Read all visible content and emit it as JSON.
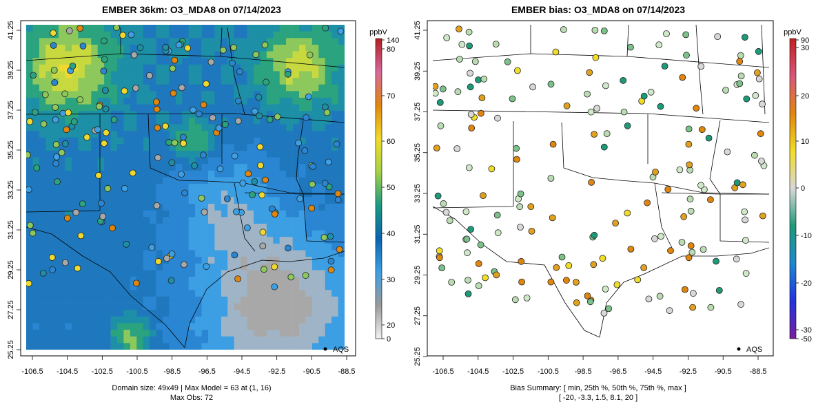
{
  "left_panel": {
    "title": "EMBER 36km: O3_MDA8 on 07/14/2023",
    "x_ticks": [
      "-106.5",
      "-104.5",
      "-102.5",
      "-100.5",
      "-98.5",
      "-96.5",
      "-94.5",
      "-92.5",
      "-90.5",
      "-88.5"
    ],
    "y_ticks": [
      "41.25",
      "39.25",
      "37.25",
      "35.25",
      "33.25",
      "31.25",
      "29.25",
      "27.25",
      "25.25"
    ],
    "legend_label": "AQS",
    "footer_line1": "Domain size: 49x49 | Max Model = 63 at (1, 16)",
    "footer_line2": "Max Obs: 72",
    "colorbar": {
      "unit": "ppbV",
      "tick_labels": [
        "140",
        "80",
        "70",
        "60",
        "50",
        "40",
        "30",
        "20",
        "0"
      ],
      "tick_values": [
        140,
        80,
        70,
        60,
        50,
        40,
        30,
        20,
        0
      ],
      "color_stops": [
        "#f3f3f3",
        "#9a9a9a",
        "#3da0e4",
        "#0a64b0",
        "#1a9a80",
        "#a5d146",
        "#f1dc28",
        "#e0860f",
        "#d8689e",
        "#b02020"
      ]
    }
  },
  "right_panel": {
    "title": "EMBER bias: O3_MDA8 on 07/14/2023",
    "x_ticks": [
      "-106.5",
      "-104.5",
      "-102.5",
      "-100.5",
      "-98.5",
      "-96.5",
      "-94.5",
      "-92.5",
      "-90.5",
      "-88.5"
    ],
    "y_ticks": [
      "41.25",
      "39.25",
      "37.25",
      "35.25",
      "33.25",
      "31.25",
      "29.25",
      "27.25",
      "25.25"
    ],
    "legend_label": "AQS",
    "footer_line1": "Bias Summary: [ min, 25th %, 50th %, 75th %, max ]",
    "footer_line2": "[ -20,   -3.3,   1.5,   8.1,   20 ]",
    "colorbar": {
      "unit": "ppbV",
      "tick_labels": [
        "90",
        "30",
        "20",
        "10",
        "0",
        "-10",
        "-20",
        "-30",
        "-50"
      ],
      "tick_values": [
        90,
        30,
        20,
        10,
        0,
        -10,
        -20,
        -30,
        -50
      ],
      "color_stops": [
        "#7a1fa0",
        "#2233dd",
        "#1e88d0",
        "#1f9a78",
        "#d8d8d8",
        "#f1dc28",
        "#e0860f",
        "#d9567a",
        "#c02020"
      ]
    }
  },
  "bias_summary": {
    "min": -20,
    "p25": -3.3,
    "p50": 1.5,
    "p75": 8.1,
    "max": 20
  },
  "model_field_description": "gridded ozone 49x49",
  "colors": {
    "map_outline": "#000000",
    "frame": "#000000",
    "grey_low": "#9a9a9a",
    "blue_mid": "#3da0e4",
    "green_high": "#1a9a80",
    "yellow_high": "#f1dc28"
  }
}
